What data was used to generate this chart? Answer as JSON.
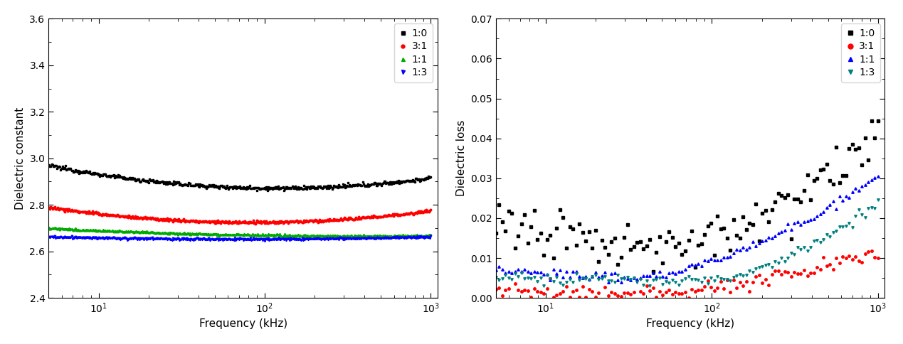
{
  "left_plot": {
    "xlabel": "Frequency (kHz)",
    "ylabel": "Dielectric constant",
    "xlim": [
      5,
      1100
    ],
    "ylim": [
      2.4,
      3.6
    ],
    "yticks": [
      2.4,
      2.6,
      2.8,
      3.0,
      3.2,
      3.4,
      3.6
    ],
    "series": [
      {
        "label": "1:0",
        "color": "black",
        "marker": "s",
        "ms": 1.8,
        "val_start": 2.97,
        "val_dip": 2.875,
        "val_end": 2.915,
        "noise": 0.004
      },
      {
        "label": "3:1",
        "color": "red",
        "marker": "o",
        "ms": 1.8,
        "val_start": 2.79,
        "val_dip": 2.725,
        "val_end": 2.775,
        "noise": 0.003
      },
      {
        "label": "1:1",
        "color": "#00aa00",
        "marker": "^",
        "ms": 1.8,
        "val_start": 2.7,
        "val_dip": 2.672,
        "val_end": 2.668,
        "noise": 0.002
      },
      {
        "label": "1:3",
        "color": "blue",
        "marker": "v",
        "ms": 1.8,
        "val_start": 2.662,
        "val_dip": 2.652,
        "val_end": 2.662,
        "noise": 0.002
      }
    ]
  },
  "right_plot": {
    "xlabel": "Frequency (kHz)",
    "ylabel": "Dielectric loss",
    "xlim": [
      5,
      1100
    ],
    "ylim": [
      0.0,
      0.07
    ],
    "yticks": [
      0.0,
      0.01,
      0.02,
      0.03,
      0.04,
      0.05,
      0.06,
      0.07
    ],
    "series": [
      {
        "label": "1:0",
        "color": "black",
        "marker": "s",
        "ms": 2.5,
        "val_low": 0.018,
        "val_min": 0.013,
        "val_end": 0.042,
        "freq_dip": 50,
        "noise": 0.003,
        "n_pts": 120
      },
      {
        "label": "3:1",
        "color": "red",
        "marker": "o",
        "ms": 2.5,
        "val_low": 0.002,
        "val_min": 0.001,
        "val_end": 0.011,
        "freq_dip": 30,
        "noise": 0.0012,
        "n_pts": 120
      },
      {
        "label": "1:1",
        "color": "blue",
        "marker": "^",
        "ms": 2.5,
        "val_low": 0.007,
        "val_min": 0.005,
        "val_end": 0.031,
        "freq_dip": 30,
        "noise": 0.0006,
        "n_pts": 120
      },
      {
        "label": "1:3",
        "color": "#008080",
        "marker": "v",
        "ms": 2.5,
        "val_low": 0.005,
        "val_min": 0.004,
        "val_end": 0.024,
        "freq_dip": 80,
        "noise": 0.0006,
        "n_pts": 120
      }
    ]
  }
}
